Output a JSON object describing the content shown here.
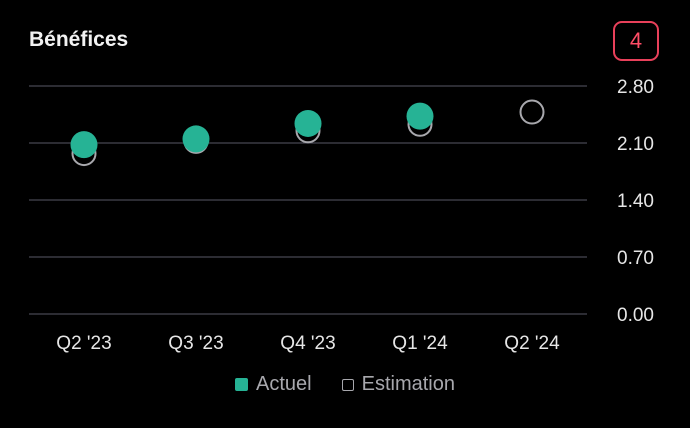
{
  "header": {
    "title": "Bénéfices",
    "badge": "4"
  },
  "legend": {
    "actual": "Actuel",
    "estimate": "Estimation"
  },
  "colors": {
    "actual": "#26b395",
    "estimate": "#a8a8ad",
    "grid": "#3a3a44",
    "badge": "#e8405a"
  },
  "chart_data": {
    "type": "scatter",
    "categories": [
      "Q2 '23",
      "Q3 '23",
      "Q4 '23",
      "Q1 '24",
      "Q2 '24"
    ],
    "series": [
      {
        "name": "Actuel",
        "values": [
          2.08,
          2.15,
          2.34,
          2.43,
          null
        ]
      },
      {
        "name": "Estimation",
        "values": [
          1.97,
          2.12,
          2.25,
          2.33,
          2.48
        ]
      }
    ],
    "yticks": [
      "0.00",
      "0.70",
      "1.40",
      "2.10",
      "2.80"
    ],
    "ylim": [
      0,
      2.8
    ],
    "grid": true,
    "legend_position": "bottom"
  }
}
